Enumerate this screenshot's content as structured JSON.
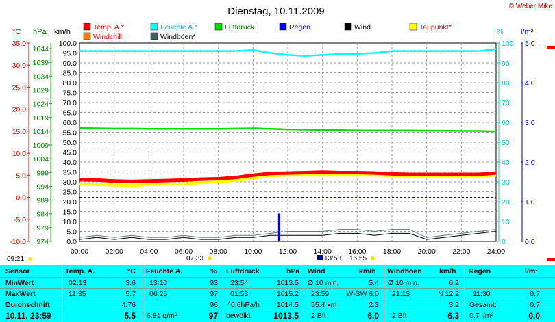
{
  "header": {
    "title": "Dienstag, 10.11.2009",
    "copyright": "© Weber Mike"
  },
  "axes": {
    "unit_celsius": "°C",
    "unit_hpa": "hPa",
    "unit_kmh": "km/h",
    "unit_percent": "%",
    "unit_rain": "l/m²"
  },
  "markers": {
    "sunrise": "07:33",
    "sunset": "16:55",
    "moon_rise": "09:21",
    "moon_set": "13:53"
  },
  "colors": {
    "temp": "#ff0000",
    "humidity": "#00e0e0",
    "pressure": "#00e000",
    "rain": "#0000ff",
    "wind": "#000000",
    "dewpoint": "#ffff00",
    "windchill": "#ff8000",
    "gust": "#406060"
  },
  "chart_data": {
    "type": "line",
    "title": "Dienstag, 10.11.2009",
    "x_ticks": [
      "00:00",
      "02:00",
      "04:00",
      "06:00",
      "08:00",
      "10:00",
      "12:00",
      "14:00",
      "16:00",
      "18:00",
      "20:00",
      "22:00",
      "24:00"
    ],
    "axis_kmh": {
      "ticks": [
        "0.0",
        "5.0",
        "10.0",
        "15.0",
        "20.0",
        "25.0",
        "30.0",
        "35.0",
        "40.0",
        "45.0",
        "50.0",
        "55.0",
        "60.0",
        "65.0",
        "70.0",
        "75.0",
        "80.0",
        "85.0",
        "90.0",
        "95.0",
        "100.0"
      ],
      "range": [
        0,
        100
      ]
    },
    "axis_celsius": {
      "ticks": [
        "-10.0",
        "-5.0",
        "0.0",
        "5.0",
        "10.0",
        "15.0",
        "20.0",
        "25.0",
        "30.0",
        "35.0"
      ],
      "range": [
        -10,
        35
      ]
    },
    "axis_hpa": {
      "ticks": [
        "974",
        "979",
        "984",
        "989",
        "994",
        "999",
        "1004",
        "1009",
        "1014",
        "1019",
        "1024",
        "1029",
        "1034",
        "1039",
        "1044"
      ],
      "range": [
        974,
        1046
      ]
    },
    "axis_percent": {
      "ticks": [
        "0",
        "10",
        "20",
        "30",
        "40",
        "50",
        "60",
        "70",
        "80",
        "90",
        "100"
      ],
      "range": [
        0,
        100
      ]
    },
    "axis_rain": {
      "ticks": [
        "0.0",
        "1.0",
        "2.0",
        "3.0",
        "4.0",
        "5.0"
      ],
      "range": [
        0,
        5
      ]
    },
    "zero_line_celsius": 0,
    "legend": [
      {
        "name": "Temp. A.*",
        "color": "#ff0000"
      },
      {
        "name": "Feuchte A.*",
        "color": "#00ffff"
      },
      {
        "name": "Luftdruck",
        "color": "#00e000"
      },
      {
        "name": "Regen",
        "color": "#0000ff"
      },
      {
        "name": "Wind",
        "color": "#000000"
      },
      {
        "name": "Taupunkt*",
        "color": "#ffff00"
      },
      {
        "name": "Windchill",
        "color": "#ff8000"
      },
      {
        "name": "Windböen*",
        "color": "#406060"
      }
    ],
    "series": [
      {
        "name": "Temp. A.*",
        "axis": "celsius",
        "x": [
          0,
          1,
          2,
          3,
          4,
          5,
          6,
          7,
          8,
          9,
          10,
          11,
          12,
          13,
          14,
          15,
          16,
          17,
          18,
          19,
          20,
          21,
          22,
          23,
          24
        ],
        "values": [
          4.0,
          3.9,
          3.7,
          3.6,
          3.7,
          3.8,
          3.9,
          4.1,
          4.2,
          4.5,
          5.0,
          5.4,
          5.5,
          5.6,
          5.7,
          5.6,
          5.6,
          5.5,
          5.3,
          5.2,
          5.2,
          5.2,
          5.2,
          5.2,
          5.5
        ]
      },
      {
        "name": "Taupunkt*",
        "axis": "celsius",
        "x": [
          0,
          1,
          2,
          3,
          4,
          5,
          6,
          7,
          8,
          9,
          10,
          11,
          12,
          13,
          14,
          15,
          16,
          17,
          18,
          19,
          20,
          21,
          22,
          23,
          24
        ],
        "values": [
          3.0,
          2.9,
          2.8,
          2.7,
          2.9,
          3.0,
          3.1,
          3.3,
          3.5,
          3.8,
          4.3,
          4.9,
          5.0,
          5.0,
          5.0,
          5.0,
          5.0,
          5.0,
          4.9,
          4.8,
          4.8,
          4.8,
          4.8,
          4.8,
          5.0
        ]
      },
      {
        "name": "Feuchte A.*",
        "axis": "percent",
        "x": [
          0,
          1,
          2,
          3,
          4,
          5,
          6,
          7,
          8,
          9,
          10,
          11,
          12,
          13,
          14,
          15,
          16,
          17,
          18,
          19,
          20,
          21,
          22,
          23,
          24
        ],
        "values": [
          96,
          96,
          96,
          96,
          96,
          96,
          96,
          96,
          96,
          96,
          96.5,
          95,
          94,
          93.5,
          94,
          94.5,
          94.5,
          95,
          96,
          96,
          96,
          96,
          96,
          96,
          97
        ]
      },
      {
        "name": "Luftdruck",
        "axis": "hpa",
        "x": [
          0,
          1,
          2,
          3,
          4,
          5,
          6,
          7,
          8,
          9,
          10,
          11,
          12,
          13,
          14,
          15,
          16,
          17,
          18,
          19,
          20,
          21,
          22,
          23,
          24
        ],
        "values": [
          1015.2,
          1015.1,
          1015.0,
          1015.0,
          1014.9,
          1014.9,
          1014.9,
          1014.9,
          1014.9,
          1015.0,
          1015.1,
          1014.9,
          1014.7,
          1014.6,
          1014.5,
          1014.4,
          1014.3,
          1014.3,
          1014.3,
          1014.3,
          1014.2,
          1014.2,
          1014.1,
          1014.1,
          1013.9
        ]
      },
      {
        "name": "Wind",
        "axis": "kmh",
        "x": [
          0,
          1,
          2,
          3,
          4,
          5,
          6,
          7,
          8,
          9,
          10,
          11,
          12,
          13,
          14,
          15,
          16,
          17,
          18,
          19,
          20,
          21,
          22,
          23,
          24
        ],
        "values": [
          1,
          2,
          1,
          2,
          1,
          1,
          2,
          1,
          1,
          2,
          2,
          3,
          3,
          3,
          3,
          4,
          4,
          3,
          4,
          4,
          1,
          2,
          3,
          4,
          5
        ]
      },
      {
        "name": "Windböen*",
        "axis": "kmh",
        "x": [
          0,
          1,
          2,
          3,
          4,
          5,
          6,
          7,
          8,
          9,
          10,
          11,
          12,
          13,
          14,
          15,
          16,
          17,
          18,
          19,
          20,
          21,
          22,
          23,
          24
        ],
        "values": [
          2,
          3,
          2,
          3,
          2,
          2,
          3,
          2,
          2,
          3,
          3,
          4,
          5,
          5,
          5,
          6,
          6,
          5,
          6,
          6,
          2,
          3,
          4,
          5,
          6
        ]
      },
      {
        "name": "Regen",
        "axis": "rain",
        "type": "bar",
        "x": [
          11.5
        ],
        "values": [
          0.7
        ]
      }
    ]
  },
  "table": {
    "headers": {
      "sensor": "Sensor",
      "temp": "Temp. A.",
      "temp_unit": "°C",
      "hum": "Feuchte A.",
      "hum_unit": "%",
      "press": "Luftdruck",
      "press_unit": "hPa",
      "wind": "Wind",
      "wind_unit": "km/h",
      "gust": "Windböen",
      "gust_unit": "km/h",
      "rain": "Regen",
      "rain_unit": "l/m²"
    },
    "rows": {
      "min": {
        "label": "MinWert",
        "temp_t": "02:13",
        "temp_v": "3.6",
        "hum_t": "13:10",
        "hum_v": "93",
        "press_t": "23:54",
        "press_v": "1013.5",
        "wind_t": "Ø 10 min.",
        "wind_v": "5.4",
        "gust_t": "Ø 10 min.",
        "gust_v": "6.2",
        "rain_t": "",
        "rain_v": ""
      },
      "max": {
        "label": "MaxWert",
        "temp_t": "11:35",
        "temp_v": "5.7",
        "hum_t": "06:25",
        "hum_v": "97",
        "press_t": "01:53",
        "press_v": "1015.2",
        "wind_t": "23:59",
        "wind_v": "W-SW 6.0",
        "gust_t": "21:15",
        "gust_v": "N 12.2",
        "rain_t": "11:30",
        "rain_v": "0.7"
      },
      "avg": {
        "label": "Durchschnitt",
        "temp_t": "",
        "temp_v": "4.76",
        "hum_t": "",
        "hum_v": "96",
        "press_t": "^0.6hPa/h",
        "press_v": "1014.5",
        "wind_t": "55.4 km",
        "wind_v": "2.3",
        "gust_t": "",
        "gust_v": "3.2",
        "rain_t": "Gesamt:",
        "rain_v": "0.7"
      },
      "cur": {
        "label": "10.11. 23:59",
        "temp_t": "",
        "temp_v": "5.5",
        "hum_t": "6.81 g/m³",
        "hum_v": "97",
        "press_t": "bewölkt",
        "press_v": "1013.5",
        "wind_t": "2 Bft",
        "wind_v": "6.0",
        "gust_t": "2 Bft",
        "gust_v": "6.3",
        "rain_t": "0.7 l/m²",
        "rain_v": "0.0"
      }
    }
  }
}
